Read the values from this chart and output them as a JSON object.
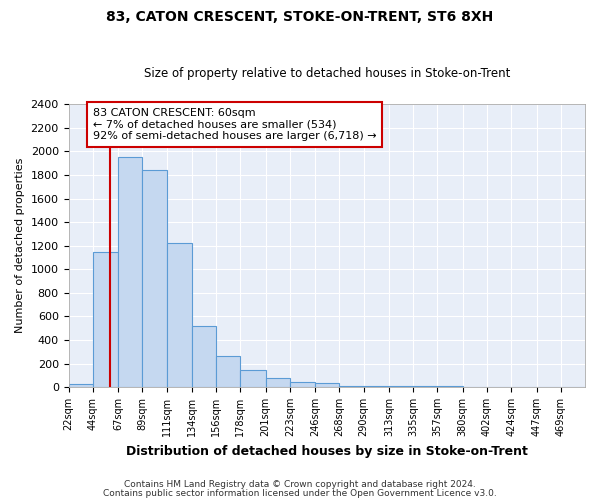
{
  "title": "83, CATON CRESCENT, STOKE-ON-TRENT, ST6 8XH",
  "subtitle": "Size of property relative to detached houses in Stoke-on-Trent",
  "xlabel": "Distribution of detached houses by size in Stoke-on-Trent",
  "ylabel": "Number of detached properties",
  "bin_labels": [
    "22sqm",
    "44sqm",
    "67sqm",
    "89sqm",
    "111sqm",
    "134sqm",
    "156sqm",
    "178sqm",
    "201sqm",
    "223sqm",
    "246sqm",
    "268sqm",
    "290sqm",
    "313sqm",
    "335sqm",
    "357sqm",
    "380sqm",
    "402sqm",
    "424sqm",
    "447sqm",
    "469sqm"
  ],
  "bar_values": [
    25,
    1150,
    1950,
    1840,
    1220,
    520,
    265,
    145,
    75,
    45,
    35,
    10,
    10,
    5,
    5,
    5,
    3,
    3,
    2,
    2,
    2
  ],
  "bar_color": "#c5d8f0",
  "bar_edge_color": "#5b9bd5",
  "vline_x": 60,
  "vline_color": "#cc0000",
  "annotation_title": "83 CATON CRESCENT: 60sqm",
  "annotation_line1": "← 7% of detached houses are smaller (534)",
  "annotation_line2": "92% of semi-detached houses are larger (6,718) →",
  "annotation_box_color": "#ffffff",
  "annotation_box_edge": "#cc0000",
  "ylim": [
    0,
    2400
  ],
  "yticks": [
    0,
    200,
    400,
    600,
    800,
    1000,
    1200,
    1400,
    1600,
    1800,
    2000,
    2200,
    2400
  ],
  "footer1": "Contains HM Land Registry data © Crown copyright and database right 2024.",
  "footer2": "Contains public sector information licensed under the Open Government Licence v3.0.",
  "bg_color": "#ffffff",
  "plot_bg_color": "#e8eef8",
  "bin_edges": [
    22,
    44,
    67,
    89,
    111,
    134,
    156,
    178,
    201,
    223,
    246,
    268,
    290,
    313,
    335,
    357,
    380,
    402,
    424,
    447,
    469,
    491
  ]
}
